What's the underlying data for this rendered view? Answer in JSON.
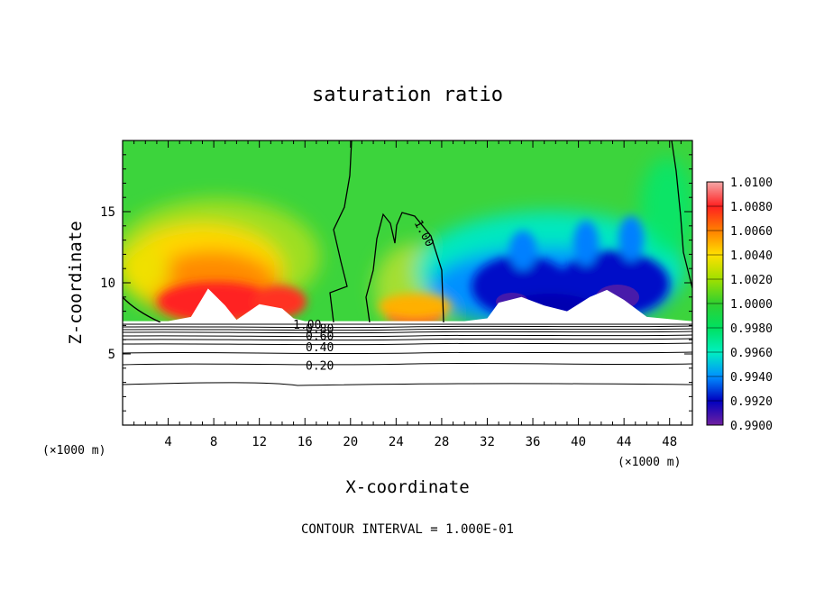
{
  "chart_data": {
    "type": "heatmap",
    "title": "saturation ratio",
    "xlabel": "X-coordinate",
    "ylabel": "Z-coordinate",
    "x_unit": "(×1000 m)",
    "y_unit": "(×1000 m)",
    "xlim": [
      0,
      50
    ],
    "ylim": [
      0,
      20
    ],
    "x_ticks": [
      4,
      8,
      12,
      16,
      20,
      24,
      28,
      32,
      36,
      40,
      44,
      48
    ],
    "y_ticks": [
      5,
      10,
      15
    ],
    "colorbar": {
      "min": 0.99,
      "max": 1.01,
      "labels": [
        "1.0100",
        "1.0080",
        "1.0060",
        "1.0040",
        "1.0020",
        "1.0000",
        "0.9980",
        "0.9960",
        "0.9940",
        "0.9920",
        "0.9900"
      ],
      "colors": [
        "#f4a0a0",
        "#ff2020",
        "#ff8000",
        "#ffe000",
        "#a0e000",
        "#30d030",
        "#00e060",
        "#00f0c0",
        "#0090ff",
        "#0000c0",
        "#7020a0"
      ]
    },
    "contour_labels": [
      {
        "label": "1.00",
        "x": 26.5,
        "z": 13.5
      },
      {
        "label": "1.00",
        "x": 16.2,
        "z": 7.1
      },
      {
        "label": "0.80",
        "x": 17.3,
        "z": 6.8
      },
      {
        "label": "0.60",
        "x": 17.3,
        "z": 6.3
      },
      {
        "label": "0.40",
        "x": 17.3,
        "z": 5.5
      },
      {
        "label": "0.20",
        "x": 17.3,
        "z": 4.2
      }
    ],
    "features": {
      "valid_region_z_bottom": 7.3,
      "terrain_x": [
        0,
        4,
        6,
        7.5,
        9,
        10,
        12,
        14,
        15,
        16,
        20,
        22,
        24,
        26,
        28,
        30,
        32,
        33,
        35,
        37,
        39,
        41,
        42.5,
        44,
        46,
        50
      ],
      "terrain_z": [
        7.3,
        7.3,
        7.6,
        9.6,
        8.4,
        7.4,
        8.5,
        8.2,
        7.5,
        7.3,
        7.3,
        7.3,
        7.3,
        7.3,
        7.3,
        7.3,
        7.5,
        8.6,
        9.0,
        8.4,
        8.0,
        9.0,
        9.5,
        8.8,
        7.6,
        7.3
      ]
    },
    "footer": "CONTOUR INTERVAL = 1.000E-01"
  }
}
